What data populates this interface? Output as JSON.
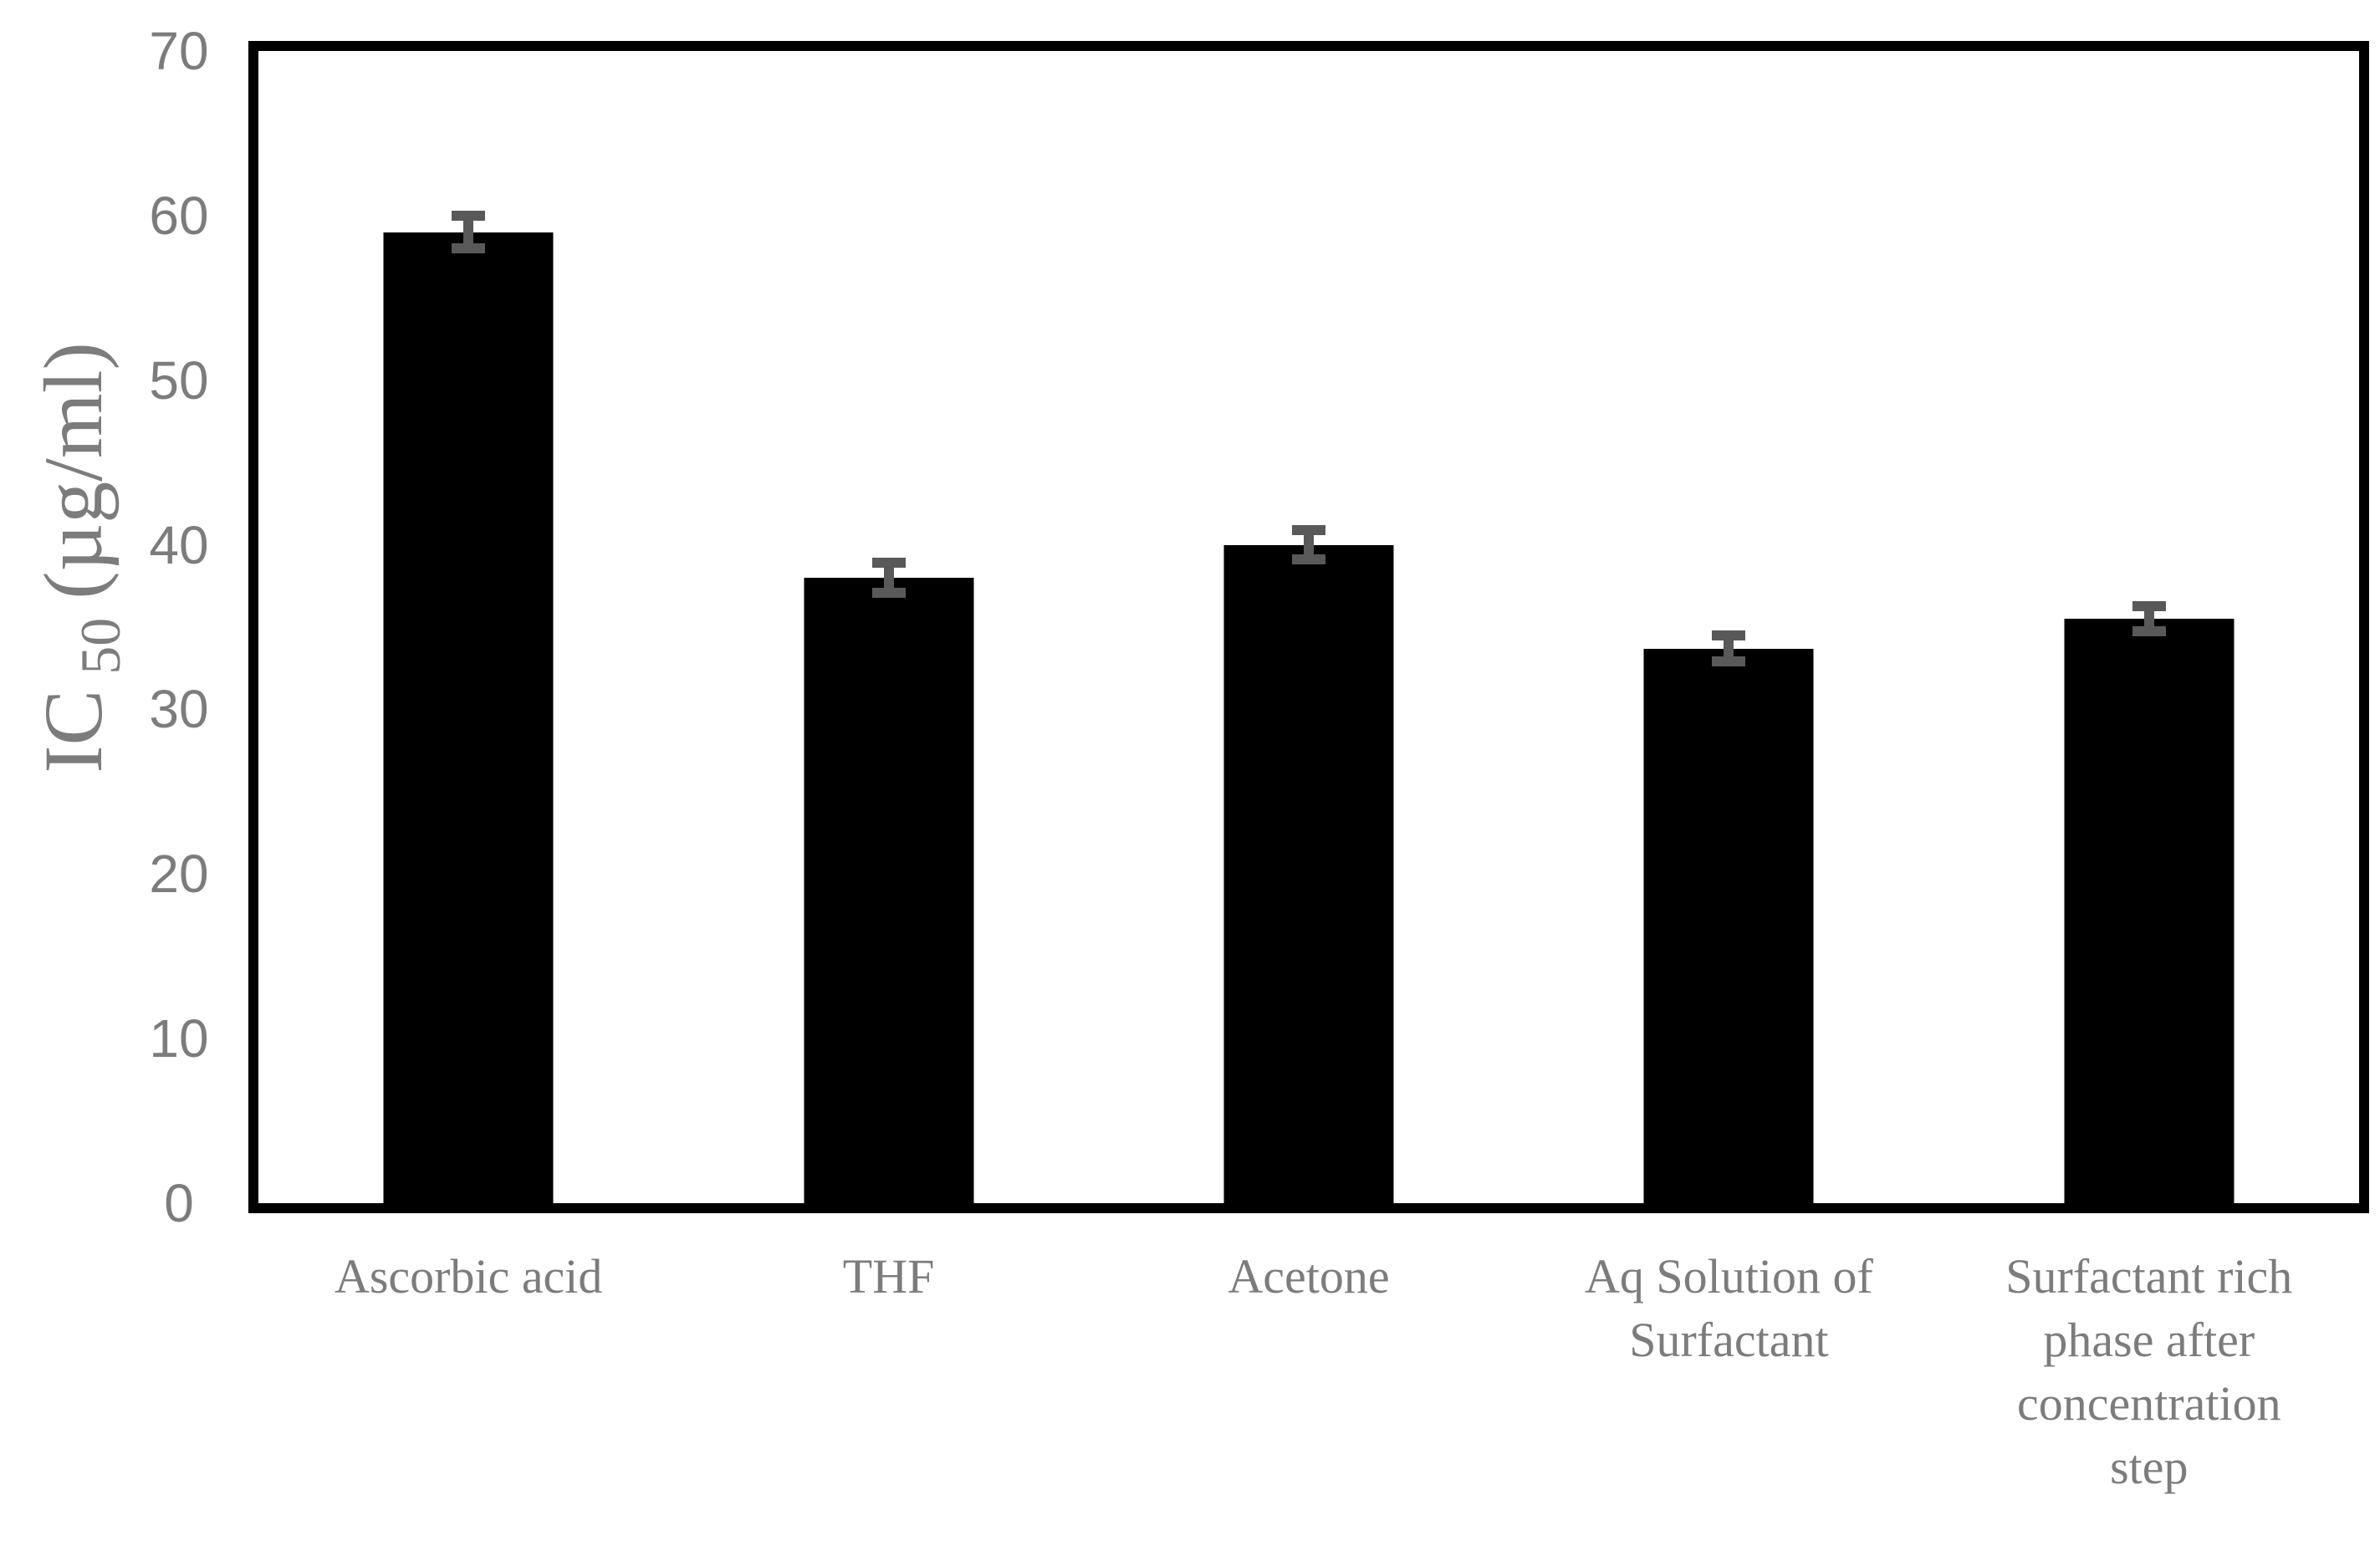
{
  "chart_data": {
    "type": "bar",
    "title": "",
    "xlabel": "",
    "ylabel": "IC 50 (µg/ml)",
    "ylabel_parts": {
      "prefix": "IC",
      "subscript": "50",
      "unit": "(µg/ml)"
    },
    "categories": [
      "Ascorbic acid",
      "THF",
      "Acetone",
      "Aq Solution of Surfactant",
      "Surfactant rich phase after concentration step"
    ],
    "category_lines": [
      [
        "Ascorbic acid"
      ],
      [
        "THF"
      ],
      [
        "Acetone"
      ],
      [
        "Aq Solution of",
        "Surfactant"
      ],
      [
        "Surfactant rich",
        "phase after",
        "concentration",
        "step"
      ]
    ],
    "values": [
      59,
      38,
      40,
      33.7,
      35.5
    ],
    "errors": [
      1.0,
      0.9,
      0.9,
      0.8,
      0.75
    ],
    "ylim": [
      0,
      70
    ],
    "yticks": [
      0,
      10,
      20,
      30,
      40,
      50,
      60,
      70
    ],
    "grid": false,
    "legend_position": "none",
    "colors": {
      "bar": "#000000",
      "error_bar": "#595959",
      "axis_frame": "#000000",
      "tick_text": "#7c7c7c",
      "label_text": "#7c7c7c",
      "background": "#ffffff"
    }
  }
}
